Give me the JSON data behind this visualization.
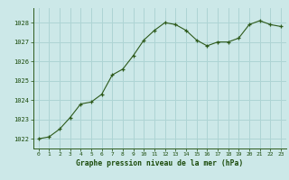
{
  "x": [
    0,
    1,
    2,
    3,
    4,
    5,
    6,
    7,
    8,
    9,
    10,
    11,
    12,
    13,
    14,
    15,
    16,
    17,
    18,
    19,
    20,
    21,
    22,
    23
  ],
  "y": [
    1022.0,
    1022.1,
    1022.5,
    1023.1,
    1023.8,
    1023.9,
    1024.3,
    1025.3,
    1025.6,
    1026.3,
    1027.1,
    1027.6,
    1028.0,
    1027.9,
    1027.6,
    1027.1,
    1026.8,
    1027.0,
    1027.0,
    1027.2,
    1027.9,
    1028.1,
    1027.9,
    1027.8
  ],
  "line_color": "#2d5a1b",
  "marker_color": "#2d5a1b",
  "bg_color": "#cce8e8",
  "grid_color": "#aed4d4",
  "xlabel": "Graphe pression niveau de la mer (hPa)",
  "xlabel_color": "#1a4a0a",
  "tick_color": "#1a4a0a",
  "ylim_min": 1021.5,
  "ylim_max": 1028.75,
  "yticks": [
    1022,
    1023,
    1024,
    1025,
    1026,
    1027,
    1028
  ],
  "xticks": [
    0,
    1,
    2,
    3,
    4,
    5,
    6,
    7,
    8,
    9,
    10,
    11,
    12,
    13,
    14,
    15,
    16,
    17,
    18,
    19,
    20,
    21,
    22,
    23
  ],
  "spine_color": "#2d5a1b"
}
